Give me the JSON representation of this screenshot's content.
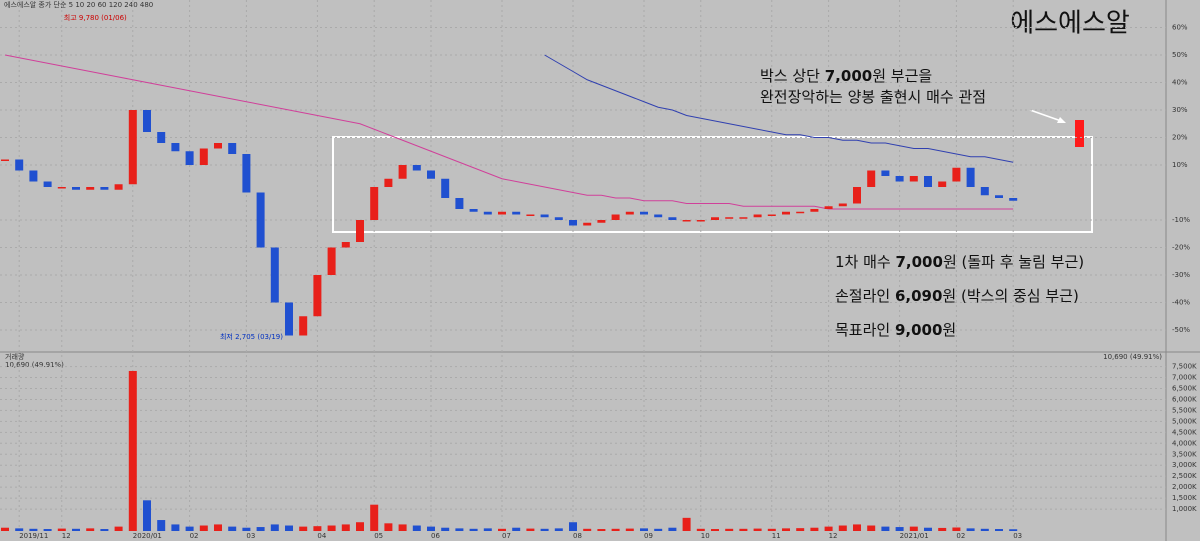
{
  "chart_data": {
    "type": "candlestick",
    "title": "에스에스알",
    "header": "에스에스알 종가 단순 5 10 20 60 120 240 480",
    "high_label": "최고 9,780 (01/06)",
    "low_label": "최저 2,705 (03/19)",
    "annotation": [
      [
        "박스 상단 ",
        "7,000",
        "원 부근을"
      ],
      [
        "완전장악하는 양봉 출현시 매수 관점"
      ]
    ],
    "notes": [
      [
        "1차 매수 ",
        "7,000",
        "원 (돌파 후 눌림 부근)"
      ],
      [
        "손절라인 ",
        "6,090",
        "원 (박스의 중심 부근)"
      ],
      [
        "목표라인 ",
        "9,000",
        "원"
      ]
    ],
    "categories": [
      null,
      "2019/11",
      null,
      null,
      "12",
      null,
      null,
      null,
      null,
      "2020/01",
      null,
      null,
      null,
      "02",
      null,
      null,
      null,
      "03",
      null,
      null,
      null,
      null,
      "04",
      null,
      null,
      null,
      "05",
      null,
      null,
      null,
      "06",
      null,
      null,
      null,
      null,
      "07",
      null,
      null,
      null,
      null,
      "08",
      null,
      null,
      null,
      null,
      "09",
      null,
      null,
      null,
      "10",
      null,
      null,
      null,
      null,
      "11",
      null,
      null,
      null,
      "12",
      null,
      null,
      null,
      null,
      "2021/01",
      null,
      null,
      null,
      "02",
      null,
      null,
      null,
      "03"
    ],
    "values": [
      12,
      8,
      4,
      2,
      2,
      1,
      2,
      1,
      3,
      30,
      22,
      18,
      15,
      10,
      16,
      18,
      14,
      0,
      -20,
      -40,
      -52,
      -45,
      -30,
      -20,
      -18,
      -10,
      2,
      5,
      10,
      8,
      5,
      -2,
      -6,
      -7,
      -8,
      -7,
      -8,
      -8,
      -9,
      -10,
      -12,
      -11,
      -10,
      -8,
      -7,
      -8,
      -9,
      -10,
      -10,
      -10,
      -9,
      -9,
      -9,
      -8,
      -8,
      -7,
      -7,
      -6,
      -5,
      -4,
      2,
      8,
      6,
      4,
      6,
      2,
      4,
      9,
      2,
      -1,
      -2,
      -3
    ],
    "series": [
      {
        "color": "#d0409a",
        "values": [
          50,
          49,
          48,
          47,
          46,
          45,
          44,
          43,
          42,
          41,
          40,
          39,
          38,
          37,
          36,
          35,
          34,
          33,
          32,
          31,
          30,
          29,
          28,
          27,
          26,
          25,
          23,
          21,
          19,
          17,
          15,
          13,
          11,
          9,
          7,
          5,
          4,
          3,
          2,
          1,
          0,
          -1,
          -1,
          -2,
          -2,
          -3,
          -3,
          -3,
          -4,
          -4,
          -4,
          -4,
          -5,
          -5,
          -5,
          -5,
          -5,
          -5,
          -6,
          -6,
          -6,
          -6,
          -6,
          -6,
          -6,
          -6,
          -6,
          -6,
          -6,
          -6,
          -6,
          -6
        ]
      },
      {
        "color": "#3040b0",
        "values": [
          null,
          null,
          null,
          null,
          null,
          null,
          null,
          null,
          null,
          null,
          null,
          null,
          null,
          null,
          null,
          null,
          null,
          null,
          null,
          null,
          null,
          null,
          null,
          null,
          null,
          null,
          null,
          null,
          null,
          null,
          null,
          null,
          null,
          null,
          null,
          null,
          null,
          null,
          50,
          47,
          44,
          41,
          39,
          37,
          35,
          33,
          31,
          30,
          28,
          27,
          26,
          25,
          24,
          23,
          22,
          21,
          21,
          20,
          20,
          19,
          19,
          18,
          18,
          17,
          16,
          16,
          15,
          14,
          13,
          13,
          12,
          11
        ]
      }
    ],
    "volume": [
      150,
      120,
      100,
      90,
      110,
      100,
      120,
      90,
      200,
      7300,
      1400,
      500,
      300,
      200,
      250,
      300,
      200,
      150,
      180,
      300,
      250,
      200,
      220,
      250,
      300,
      400,
      1200,
      350,
      300,
      250,
      200,
      150,
      120,
      100,
      120,
      100,
      150,
      110,
      100,
      120,
      400,
      100,
      90,
      100,
      110,
      120,
      100,
      150,
      600,
      100,
      90,
      100,
      100,
      110,
      100,
      120,
      130,
      150,
      200,
      250,
      300,
      250,
      200,
      180,
      200,
      150,
      140,
      160,
      120,
      100,
      90,
      80
    ],
    "volume_label": "거래량",
    "volume_info": "10,690 (49.91%)",
    "ylim": [
      -58,
      70
    ],
    "yticks": [
      {
        "value": 60,
        "label": "60%"
      },
      {
        "value": 50,
        "label": "50%"
      },
      {
        "value": 40,
        "label": "40%"
      },
      {
        "value": 30,
        "label": "30%"
      },
      {
        "value": 20,
        "label": "20%"
      },
      {
        "value": 10,
        "label": "10%"
      },
      {
        "value": -10,
        "label": "-10%"
      },
      {
        "value": -20,
        "label": "-20%"
      },
      {
        "value": -30,
        "label": "-30%"
      },
      {
        "value": -40,
        "label": "-40%"
      },
      {
        "value": -50,
        "label": "-50%"
      }
    ],
    "vlim": [
      0,
      7800
    ],
    "vticks": [
      {
        "value": 1000,
        "label": "1,000K"
      },
      {
        "value": 1500,
        "label": "1,500K"
      },
      {
        "value": 2000,
        "label": "2,000K"
      },
      {
        "value": 2500,
        "label": "2,500K"
      },
      {
        "value": 3000,
        "label": "3,000K"
      },
      {
        "value": 3500,
        "label": "3,500K"
      },
      {
        "value": 4000,
        "label": "4,000K"
      },
      {
        "value": 4500,
        "label": "4,500K"
      },
      {
        "value": 5000,
        "label": "5,000K"
      },
      {
        "value": 5500,
        "label": "5,500K"
      },
      {
        "value": 6000,
        "label": "6,000K"
      },
      {
        "value": 6500,
        "label": "6,500K"
      },
      {
        "value": 7000,
        "label": "7,000K"
      },
      {
        "value": 7500,
        "label": "7,500K"
      }
    ],
    "up_color": "#e8201a",
    "down_color": "#2050d0",
    "grid": true
  }
}
